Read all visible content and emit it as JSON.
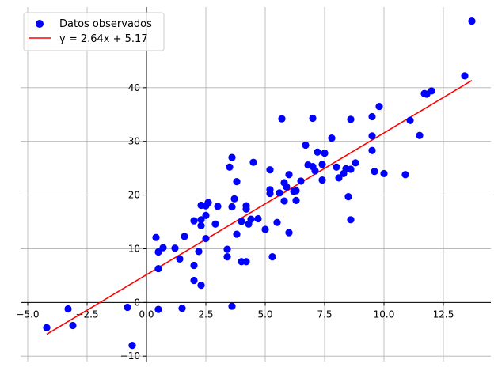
{
  "chart_data": {
    "type": "scatter",
    "title": "",
    "xlabel": "",
    "ylabel": "",
    "xlim": [
      -5.3,
      14.5
    ],
    "ylim": [
      -11,
      55
    ],
    "x_ticks": [
      -5.0,
      -2.5,
      0.0,
      2.5,
      5.0,
      7.5,
      10.0,
      12.5
    ],
    "x_tick_labels": [
      "−5.0",
      "−2.5",
      "0.0",
      "2.5",
      "5.0",
      "7.5",
      "10.0",
      "12.5"
    ],
    "y_ticks": [
      -10,
      0,
      10,
      20,
      30,
      40
    ],
    "y_tick_labels": [
      "−10",
      "0",
      "10",
      "20",
      "30",
      "40"
    ],
    "grid": true,
    "spines": "centered at origin",
    "legend_position": "top-left",
    "series": [
      {
        "name": "Datos observados",
        "kind": "scatter",
        "color": "#0000ff",
        "points": [
          [
            -4.2,
            -4.7
          ],
          [
            -3.3,
            -1.2
          ],
          [
            -3.1,
            -4.3
          ],
          [
            -0.8,
            -0.9
          ],
          [
            -0.6,
            -8.0
          ],
          [
            0.5,
            -1.3
          ],
          [
            0.5,
            6.3
          ],
          [
            0.4,
            12.1
          ],
          [
            0.5,
            9.4
          ],
          [
            0.7,
            10.2
          ],
          [
            1.2,
            10.1
          ],
          [
            1.4,
            8.1
          ],
          [
            1.5,
            -1.1
          ],
          [
            1.6,
            12.3
          ],
          [
            2.0,
            15.2
          ],
          [
            2.0,
            6.9
          ],
          [
            2.0,
            4.1
          ],
          [
            2.2,
            9.5
          ],
          [
            2.3,
            3.2
          ],
          [
            2.3,
            18.1
          ],
          [
            2.3,
            15.4
          ],
          [
            2.3,
            14.3
          ],
          [
            2.5,
            16.2
          ],
          [
            2.5,
            18.0
          ],
          [
            2.6,
            18.6
          ],
          [
            2.5,
            11.9
          ],
          [
            2.9,
            14.6
          ],
          [
            3.0,
            17.9
          ],
          [
            3.4,
            9.9
          ],
          [
            3.4,
            8.5
          ],
          [
            3.5,
            25.2
          ],
          [
            3.6,
            27.0
          ],
          [
            3.6,
            17.8
          ],
          [
            3.7,
            19.3
          ],
          [
            3.8,
            22.5
          ],
          [
            3.8,
            12.7
          ],
          [
            3.6,
            -0.7
          ],
          [
            4.0,
            7.6
          ],
          [
            4.0,
            15.1
          ],
          [
            4.2,
            7.6
          ],
          [
            4.2,
            18.0
          ],
          [
            4.2,
            17.4
          ],
          [
            4.4,
            15.5
          ],
          [
            4.3,
            14.6
          ],
          [
            4.5,
            26.1
          ],
          [
            4.7,
            15.6
          ],
          [
            5.0,
            13.6
          ],
          [
            5.2,
            24.7
          ],
          [
            5.2,
            20.3
          ],
          [
            5.2,
            21.0
          ],
          [
            5.3,
            8.5
          ],
          [
            5.5,
            14.9
          ],
          [
            5.6,
            20.4
          ],
          [
            5.7,
            34.2
          ],
          [
            5.8,
            22.3
          ],
          [
            5.8,
            18.9
          ],
          [
            5.9,
            21.5
          ],
          [
            6.0,
            23.8
          ],
          [
            6.0,
            13.0
          ],
          [
            6.2,
            20.7
          ],
          [
            6.3,
            19.0
          ],
          [
            6.3,
            20.8
          ],
          [
            6.5,
            22.6
          ],
          [
            6.7,
            29.3
          ],
          [
            6.8,
            25.6
          ],
          [
            7.0,
            34.3
          ],
          [
            7.0,
            25.3
          ],
          [
            7.1,
            24.5
          ],
          [
            7.2,
            28.0
          ],
          [
            7.4,
            25.7
          ],
          [
            7.4,
            22.8
          ],
          [
            7.5,
            27.8
          ],
          [
            7.8,
            30.6
          ],
          [
            8.0,
            25.2
          ],
          [
            8.1,
            23.2
          ],
          [
            8.3,
            24.0
          ],
          [
            8.4,
            24.9
          ],
          [
            8.5,
            19.7
          ],
          [
            8.6,
            34.1
          ],
          [
            8.6,
            24.8
          ],
          [
            8.6,
            15.4
          ],
          [
            8.8,
            26.0
          ],
          [
            9.5,
            34.6
          ],
          [
            9.5,
            31.0
          ],
          [
            9.6,
            24.4
          ],
          [
            9.5,
            28.3
          ],
          [
            9.8,
            36.5
          ],
          [
            10.0,
            24.0
          ],
          [
            10.9,
            23.8
          ],
          [
            11.1,
            33.9
          ],
          [
            11.5,
            31.1
          ],
          [
            11.7,
            38.9
          ],
          [
            11.8,
            38.8
          ],
          [
            12.0,
            39.4
          ],
          [
            13.4,
            42.2
          ],
          [
            13.7,
            52.4
          ]
        ]
      },
      {
        "name": "y = 2.64x + 5.17",
        "kind": "line",
        "color": "#ff0000",
        "slope": 2.64,
        "intercept": 5.17,
        "x_range": [
          -4.2,
          13.7
        ]
      }
    ]
  }
}
